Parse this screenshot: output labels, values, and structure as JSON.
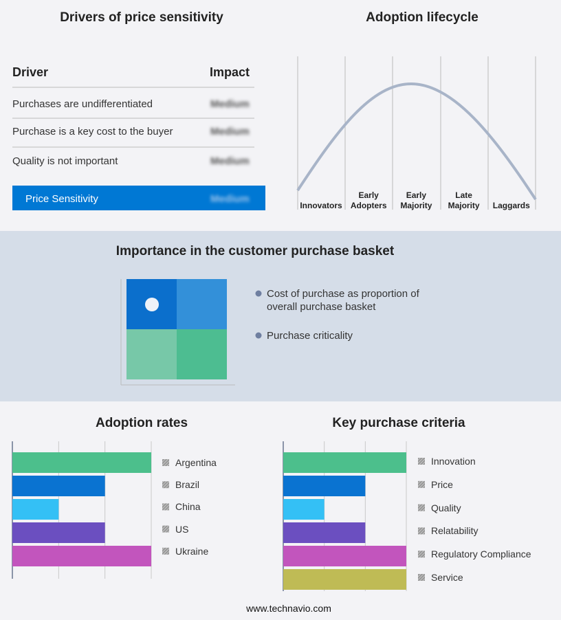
{
  "drivers": {
    "title": "Drivers of price sensitivity",
    "header": [
      "Driver",
      "Impact"
    ],
    "rows": [
      [
        "Purchases are undifferentiated",
        "Medium"
      ],
      [
        "Purchase is a key cost to the buyer",
        "Medium"
      ],
      [
        "Quality is not important",
        "Medium"
      ]
    ],
    "summary": [
      "Price Sensitivity",
      "Medium"
    ]
  },
  "lifecycle": {
    "title": "Adoption lifecycle",
    "stages": [
      "Innovators",
      "Early Adopters",
      "Early Majority",
      "Late Majority",
      "Laggards"
    ]
  },
  "basket": {
    "title": "Importance in the customer purchase basket",
    "legend": [
      "Cost of purchase as proportion of overall purchase basket",
      "Purchase criticality"
    ]
  },
  "adoption_rates": {
    "type": "bar",
    "title": "Adoption rates",
    "categories": [
      "Argentina",
      "Brazil",
      "China",
      "US",
      "Ukraine"
    ],
    "values": [
      3,
      2,
      1,
      2,
      3
    ],
    "colors": [
      "#4cbf8c",
      "#0a73d1",
      "#34c0f5",
      "#6b4fc0",
      "#c255bd"
    ],
    "xlim": [
      0,
      3
    ],
    "xticks": [
      1,
      2,
      3
    ],
    "grid": true
  },
  "key_purchase_criteria": {
    "type": "bar",
    "title": "Key purchase criteria",
    "categories": [
      "Innovation",
      "Price",
      "Quality",
      "Relatability",
      "Regulatory Compliance",
      "Service"
    ],
    "values": [
      3,
      2,
      1,
      2,
      3,
      3
    ],
    "colors": [
      "#4cbf8c",
      "#0a73d1",
      "#34c0f5",
      "#6b4fc0",
      "#c255bd",
      "#bfbb55"
    ],
    "xlim": [
      0,
      3
    ],
    "xticks": [
      1,
      2,
      3
    ],
    "grid": true
  },
  "footer": "www.technavio.com"
}
